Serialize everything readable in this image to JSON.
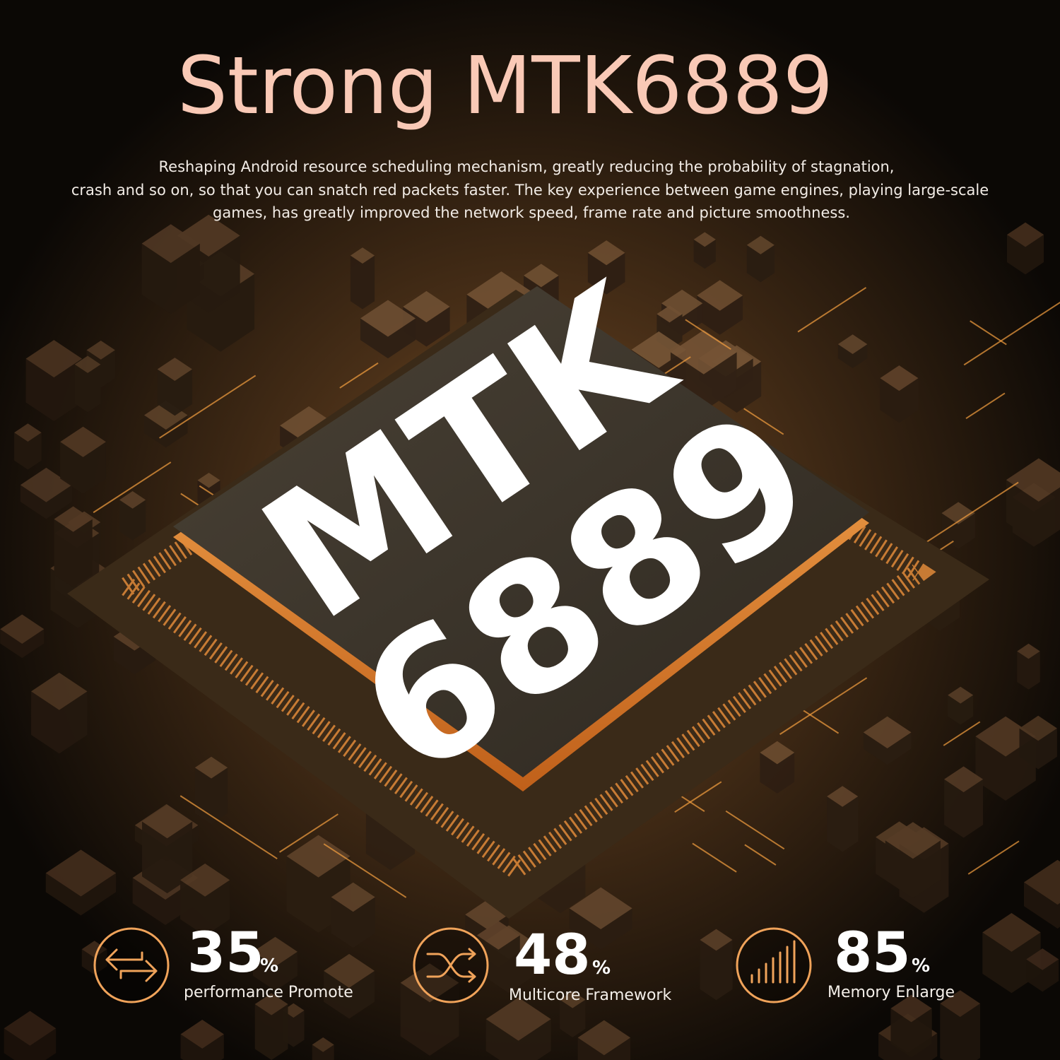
{
  "header": {
    "title": "Strong MTK6889",
    "description": [
      "Reshaping Android resource scheduling mechanism, greatly reducing the probability of stagnation,",
      "crash and so on, so that you can snatch red packets faster. The key experience between game engines, playing large-scale",
      "games, has greatly improved the network speed, frame rate and picture smoothness."
    ]
  },
  "chip": {
    "line1": "MTK",
    "line2": "6889"
  },
  "stats": [
    {
      "value": "35",
      "unit": "%",
      "label": "performance Promote"
    },
    {
      "value": "48",
      "unit": "%",
      "label": "Multicore Framework"
    },
    {
      "value": "85",
      "unit": "%",
      "label": "Memory Enlarge"
    }
  ]
}
